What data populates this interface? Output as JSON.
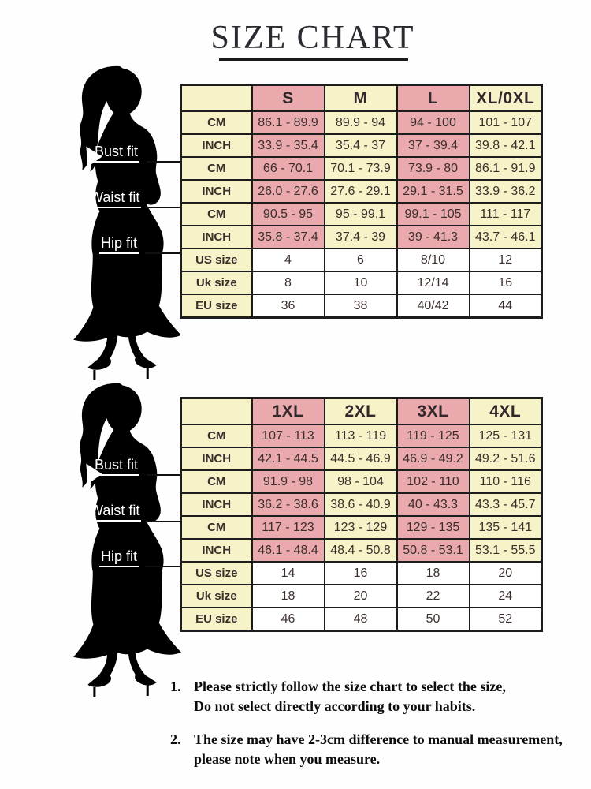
{
  "title": "SIZE CHART",
  "fit_labels": {
    "bust": "Bust fit",
    "waist": "Waist fit",
    "hip": "Hip fit"
  },
  "notes": [
    {
      "number": "1.",
      "line1": "Please strictly follow the size chart to select the size,",
      "line2": "Do not select directly according to your habits."
    },
    {
      "number": "2.",
      "line1": "The size may have 2-3cm difference to manual measurement,",
      "line2": "please note when you measure."
    }
  ],
  "colors": {
    "pink": "#e9a9ad",
    "cream": "#f6f3c9",
    "white": "#ffffff",
    "border": "#1d1d1d",
    "value_text": "#3b2f2c",
    "title_text": "#2a2a31",
    "note_text": "#0c0c0c",
    "fit_label_text": "#ffffff",
    "silhouette": "#000000"
  },
  "chart_data": [
    {
      "type": "table",
      "columns": [
        "",
        "S",
        "M",
        "L",
        "XL/0XL"
      ],
      "rows": [
        [
          "CM",
          "86.1 - 89.9",
          "89.9 - 94",
          "94 - 100",
          "101 - 107"
        ],
        [
          "INCH",
          "33.9 - 35.4",
          "35.4 - 37",
          "37 - 39.4",
          "39.8 - 42.1"
        ],
        [
          "CM",
          "66 - 70.1",
          "70.1 - 73.9",
          "73.9 - 80",
          "86.1 - 91.9"
        ],
        [
          "INCH",
          "26.0 - 27.6",
          "27.6 - 29.1",
          "29.1 - 31.5",
          "33.9 - 36.2"
        ],
        [
          "CM",
          "90.5 - 95",
          "95 - 99.1",
          "99.1 - 105",
          "111 - 117"
        ],
        [
          "INCH",
          "35.8 - 37.4",
          "37.4 - 39",
          "39 - 41.3",
          "43.7 - 46.1"
        ],
        [
          "US size",
          "4",
          "6",
          "8/10",
          "12"
        ],
        [
          "Uk size",
          "8",
          "10",
          "12/14",
          "16"
        ],
        [
          "EU size",
          "36",
          "38",
          "40/42",
          "44"
        ]
      ],
      "row_measure_groups": [
        "Bust fit",
        "Bust fit",
        "Waist fit",
        "Waist fit",
        "Hip fit",
        "Hip fit",
        "",
        "",
        ""
      ]
    },
    {
      "type": "table",
      "columns": [
        "",
        "1XL",
        "2XL",
        "3XL",
        "4XL"
      ],
      "rows": [
        [
          "CM",
          "107 - 113",
          "113 - 119",
          "119 - 125",
          "125 - 131"
        ],
        [
          "INCH",
          "42.1 - 44.5",
          "44.5 - 46.9",
          "46.9 - 49.2",
          "49.2 - 51.6"
        ],
        [
          "CM",
          "91.9 - 98",
          "98 - 104",
          "102 - 110",
          "110 - 116"
        ],
        [
          "INCH",
          "36.2 - 38.6",
          "38.6 - 40.9",
          "40 - 43.3",
          "43.3 - 45.7"
        ],
        [
          "CM",
          "117 - 123",
          "123 - 129",
          "129 - 135",
          "135 - 141"
        ],
        [
          "INCH",
          "46.1 - 48.4",
          "48.4 - 50.8",
          "50.8 - 53.1",
          "53.1 - 55.5"
        ],
        [
          "US size",
          "14",
          "16",
          "18",
          "20"
        ],
        [
          "Uk size",
          "18",
          "20",
          "22",
          "24"
        ],
        [
          "EU size",
          "46",
          "48",
          "50",
          "52"
        ]
      ],
      "row_measure_groups": [
        "Bust fit",
        "Bust fit",
        "Waist fit",
        "Waist fit",
        "Hip fit",
        "Hip fit",
        "",
        "",
        ""
      ]
    }
  ]
}
